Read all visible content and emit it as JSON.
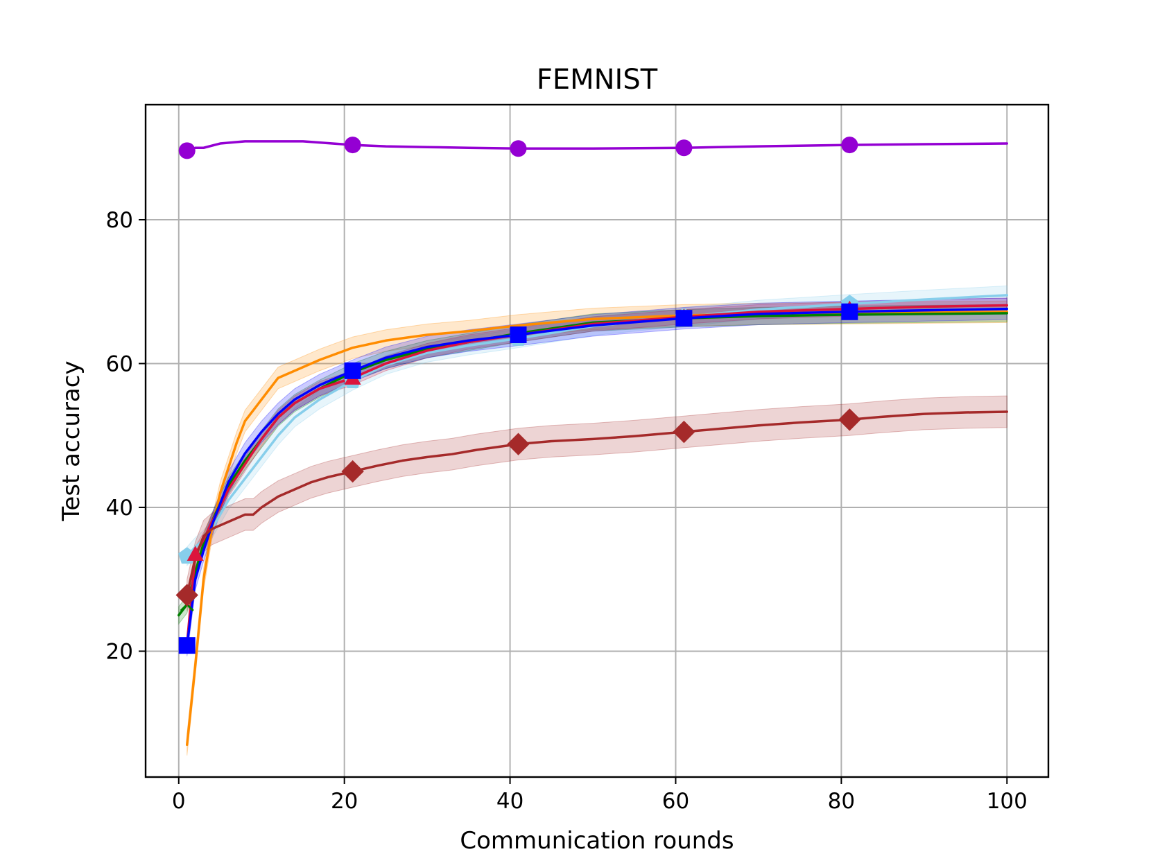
{
  "chart_data": {
    "type": "line",
    "title": "FEMNIST",
    "xlabel": "Communication rounds",
    "ylabel": "Test accuracy",
    "xlim": [
      -4,
      105
    ],
    "ylim": [
      2.5,
      96
    ],
    "xticks": [
      0,
      20,
      40,
      60,
      80,
      100
    ],
    "yticks": [
      20,
      40,
      60,
      80
    ],
    "grid": true,
    "legend": "none",
    "series": [
      {
        "color": "#9400D3",
        "marker": "circle",
        "markers_at": [
          1,
          21,
          41,
          61,
          81
        ],
        "x": [
          1,
          2,
          3,
          5,
          8,
          11,
          15,
          21,
          25,
          30,
          35,
          41,
          50,
          61,
          70,
          81,
          90,
          100
        ],
        "y": [
          89.6,
          90.0,
          90.0,
          90.6,
          90.9,
          90.9,
          90.9,
          90.4,
          90.2,
          90.1,
          90.0,
          89.9,
          89.9,
          90.0,
          90.2,
          90.4,
          90.5,
          90.6
        ]
      },
      {
        "color": "#87CEEB",
        "marker": "pentagon",
        "markers_at": [
          1,
          21,
          41,
          61,
          81
        ],
        "band": 1.3,
        "x": [
          1,
          2,
          3,
          4,
          5,
          6,
          8,
          10,
          12,
          14,
          17,
          21,
          25,
          30,
          35,
          41,
          50,
          61,
          70,
          81,
          90,
          100
        ],
        "y": [
          33.2,
          34.5,
          35.5,
          37.0,
          39.0,
          41.0,
          44.0,
          47.0,
          50.0,
          52.5,
          55.0,
          57.6,
          59.8,
          61.5,
          62.5,
          63.5,
          65.2,
          66.5,
          67.5,
          68.3,
          68.9,
          69.5
        ]
      },
      {
        "color": "#FF8C00",
        "marker": "none",
        "markers_at": [],
        "band": 1.5,
        "x": [
          1,
          2,
          3,
          4,
          5,
          6,
          7,
          8,
          9,
          10,
          12,
          14,
          17,
          21,
          25,
          30,
          35,
          41,
          50,
          61,
          70,
          81,
          90,
          100
        ],
        "y": [
          7.0,
          18.0,
          30.0,
          37.0,
          42.0,
          45.5,
          49.0,
          52.0,
          53.5,
          55.0,
          58.0,
          59.0,
          60.5,
          62.2,
          63.2,
          64.0,
          64.5,
          65.3,
          66.2,
          66.7,
          66.9,
          67.0,
          67.1,
          67.2
        ]
      },
      {
        "color": "#008000",
        "marker": "x",
        "markers_at": [
          1
        ],
        "band": 1.2,
        "x": [
          0,
          1,
          2,
          3,
          4,
          5,
          6,
          8,
          10,
          12,
          14,
          17,
          21,
          25,
          30,
          35,
          41,
          50,
          61,
          70,
          81,
          90,
          100
        ],
        "y": [
          25.0,
          26.5,
          31.0,
          35.0,
          38.0,
          40.5,
          43.0,
          46.5,
          49.5,
          52.5,
          54.5,
          56.5,
          58.8,
          60.5,
          62.0,
          63.0,
          64.2,
          65.7,
          66.3,
          66.6,
          66.8,
          66.9,
          67.0
        ]
      },
      {
        "color": "#DC143C",
        "marker": "triangle",
        "markers_at": [
          2,
          21,
          41,
          61,
          81
        ],
        "band": 1.0,
        "x": [
          1,
          2,
          3,
          4,
          5,
          6,
          8,
          10,
          12,
          14,
          17,
          21,
          25,
          30,
          35,
          41,
          50,
          61,
          70,
          81,
          90,
          100
        ],
        "y": [
          21.0,
          33.5,
          35.5,
          38.0,
          40.0,
          42.5,
          46.0,
          49.5,
          52.5,
          54.5,
          56.5,
          58.0,
          60.0,
          61.8,
          63.0,
          64.0,
          65.5,
          66.5,
          67.2,
          67.6,
          67.9,
          68.1
        ]
      },
      {
        "color": "#0000FF",
        "marker": "square",
        "markers_at": [
          1,
          21,
          41,
          61,
          81
        ],
        "band": 1.5,
        "x": [
          1,
          2,
          3,
          4,
          5,
          6,
          8,
          10,
          12,
          14,
          17,
          21,
          25,
          30,
          35,
          41,
          50,
          61,
          70,
          81,
          90,
          100
        ],
        "y": [
          20.8,
          30.0,
          34.0,
          37.5,
          40.5,
          43.5,
          47.5,
          50.5,
          53.0,
          55.0,
          57.0,
          59.0,
          60.8,
          62.3,
          63.2,
          64.0,
          65.3,
          66.3,
          66.9,
          67.2,
          67.4,
          67.6
        ]
      },
      {
        "color": "#A52A2A",
        "marker": "diamond",
        "markers_at": [
          1,
          21,
          41,
          61,
          81
        ],
        "band": 2.2,
        "x": [
          1,
          2,
          3,
          4,
          6,
          8,
          9,
          10,
          12,
          14,
          16,
          18,
          21,
          24,
          27,
          30,
          33,
          36,
          41,
          45,
          50,
          55,
          61,
          65,
          70,
          75,
          81,
          85,
          90,
          95,
          100
        ],
        "y": [
          27.8,
          33.0,
          36.0,
          37.0,
          38.0,
          39.0,
          39.0,
          40.0,
          41.5,
          42.5,
          43.5,
          44.2,
          45.0,
          45.8,
          46.5,
          47.0,
          47.4,
          48.0,
          48.8,
          49.2,
          49.5,
          49.9,
          50.5,
          50.9,
          51.4,
          51.8,
          52.2,
          52.6,
          53.0,
          53.2,
          53.3
        ]
      }
    ]
  }
}
